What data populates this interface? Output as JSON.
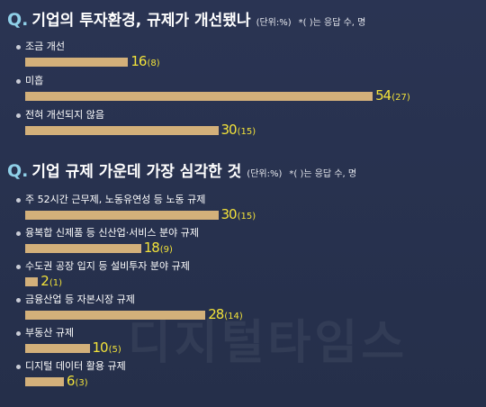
{
  "chart_data": [
    {
      "type": "bar",
      "orientation": "horizontal",
      "q_mark": "Q.",
      "title": "기업의 투자환경, 규제가 개선됐나",
      "unit": "(단위:%)",
      "note": "*( )는 응답 수, 명",
      "categories": [
        "조금 개선",
        "미흡",
        "전혀 개선되지 않음"
      ],
      "values": [
        16,
        54,
        30
      ],
      "counts": [
        "(8)",
        "(27)",
        "(15)"
      ],
      "bar_color": "#d3b07a",
      "value_color": "#f2e23a"
    },
    {
      "type": "bar",
      "orientation": "horizontal",
      "q_mark": "Q.",
      "title": "기업 규제 가운데 가장 심각한 것",
      "unit": "(단위:%)",
      "note": "*( )는 응답 수, 명",
      "categories": [
        "주 52시간 근무제, 노동유연성 등 노동 규제",
        "융복합 신제품 등 신산업·서비스 분야 규제",
        "수도권 공장 입지 등 설비투자 분야 규제",
        "금융산업 등 자본시장 규제",
        "부동산 규제",
        "디지털 데이터 활용 규제"
      ],
      "values": [
        30,
        18,
        2,
        28,
        10,
        6
      ],
      "counts": [
        "(15)",
        "(9)",
        "(1)",
        "(14)",
        "(5)",
        "(3)"
      ],
      "bar_color": "#d3b07a",
      "value_color": "#f2e23a"
    }
  ],
  "watermark": "디지털타임스"
}
